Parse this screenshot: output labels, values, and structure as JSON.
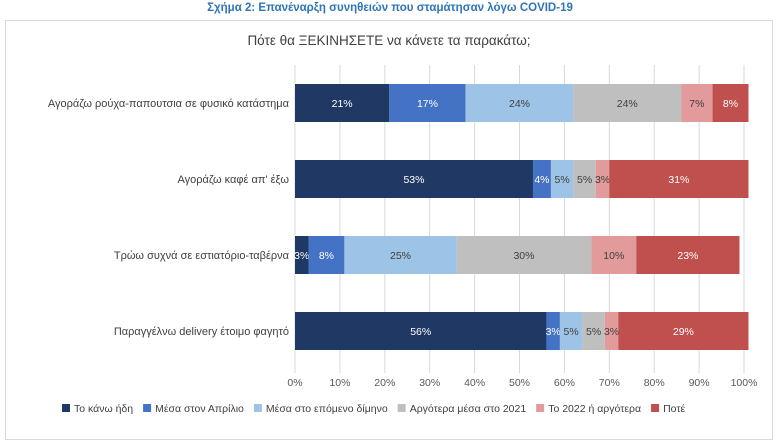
{
  "header": {
    "title": "Σχήμα 2: Επανέναρξη συνηθειών που σταμάτησαν λόγω COVID-19"
  },
  "chart_data": {
    "type": "bar",
    "orientation": "horizontal",
    "stacked": true,
    "title": "Πότε θα ΞΕΚΙΝΗΣΕΤΕ να κάνετε τα παρακάτω;",
    "categories": [
      "Αγοράζω ρούχα-παπουτσια σε φυσικό κατάστημα",
      "Αγοράζω καφέ απ' έξω",
      "Τρώω συχνά σε εστιατόριο-ταβέρνα",
      "Παραγγέλνω delivery έτοιμο φαγητό"
    ],
    "series": [
      {
        "name": "Το κάνω ήδη",
        "color": "#203864",
        "values": [
          21,
          53,
          3,
          56
        ],
        "labels": [
          "21%",
          "53%",
          "3%",
          "56%"
        ]
      },
      {
        "name": "Μέσα στον Απρίλιο",
        "color": "#4472c4",
        "values": [
          17,
          4,
          8,
          3
        ],
        "labels": [
          "17%",
          "4%",
          "8%",
          "3%"
        ]
      },
      {
        "name": "Μέσα στο επόμενο δίμηνο",
        "color": "#9dc3e6",
        "values": [
          24,
          5,
          25,
          5
        ],
        "labels": [
          "24%",
          "5%",
          "25%",
          "5%"
        ]
      },
      {
        "name": "Αργότερα μέσα στο 2021",
        "color": "#bfbfbf",
        "values": [
          24,
          5,
          30,
          5
        ],
        "labels": [
          "24%",
          "5%",
          "30%",
          "5%"
        ]
      },
      {
        "name": "Το 2022 ή αργότερα",
        "color": "#e29a9a",
        "values": [
          7,
          3,
          10,
          3
        ],
        "labels": [
          "7%",
          "3%",
          "10%",
          "3%"
        ]
      },
      {
        "name": "Ποτέ",
        "color": "#c0504d",
        "values": [
          8,
          31,
          23,
          29
        ],
        "labels": [
          "8%",
          "31%",
          "23%",
          "29%"
        ]
      }
    ],
    "xlim": [
      0,
      100
    ],
    "xticks": [
      "0%",
      "10%",
      "20%",
      "30%",
      "40%",
      "50%",
      "60%",
      "70%",
      "80%",
      "90%",
      "100%"
    ],
    "grid": true,
    "legend": "bottom"
  }
}
